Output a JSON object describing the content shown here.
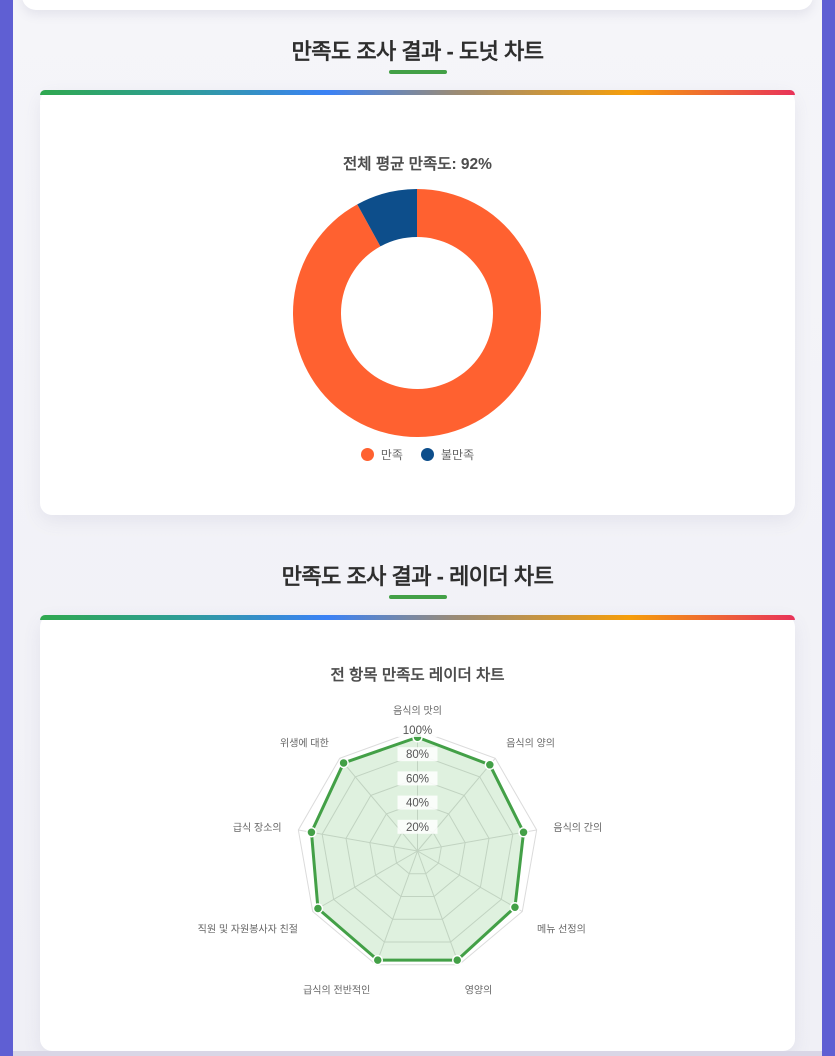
{
  "page": {
    "background": "#F2F2F7",
    "accent_bar_color": "#5F5FD3",
    "footer_strip_color": "#D9D6E6",
    "title_underline_color": "#43A047",
    "card_top_gradient": "linear-gradient(90deg,#2FA84F 0%,#2E9E93 18%,#3B82F6 38%,#9A8B76 55%,#F59E0B 78%,#E8335A 100%)"
  },
  "sections": [
    {
      "title": "만족도 조사 결과 - 도넛 차트"
    },
    {
      "title": "만족도 조사 결과 - 레이더 차트"
    }
  ],
  "chart_data": [
    {
      "type": "pie",
      "variant": "doughnut",
      "title": "전체 평균 만족도: 92%",
      "labels": [
        "만족",
        "불만족"
      ],
      "values": [
        92,
        8
      ],
      "colors": [
        "#FF6130",
        "#0D4E8B"
      ],
      "cutout_ratio": 0.61,
      "start_angle_deg": -90,
      "direction": "clockwise",
      "legend_position": "bottom",
      "legend_text_color": "#666666"
    },
    {
      "type": "radar",
      "title": "전 항목 만족도 레이더 차트",
      "categories": [
        "음식의 맛의",
        "음식의 양의",
        "음식의 간의",
        "메뉴 선정의",
        "영양의",
        "급식의 전반적인",
        "직원 및 자원봉사자 친절",
        "급식 장소의",
        "위생에 대한"
      ],
      "values": [
        94,
        93,
        89,
        93,
        96,
        96,
        95,
        89,
        95
      ],
      "rmin": 0,
      "rmax": 100,
      "grid": true,
      "grid_rings": 5,
      "tick_labels": [
        "20%",
        "40%",
        "60%",
        "80%",
        "100%"
      ],
      "line_color": "#43A047",
      "point_color": "#43A047",
      "fill_color": "rgba(76,175,80,0.18)",
      "grid_color": "#DBDBDB",
      "tick_color": "#555555",
      "label_color": "#666666"
    }
  ]
}
